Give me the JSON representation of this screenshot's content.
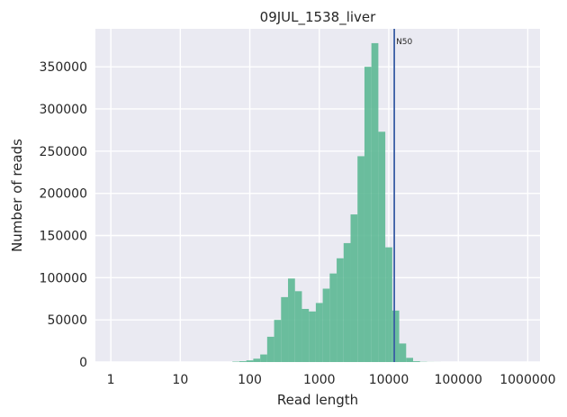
{
  "chart_data": {
    "type": "bar",
    "title": "09JUL_1538_liver",
    "xlabel": "Read length",
    "ylabel": "Number of reads",
    "x_scale": "log10",
    "xlim": [
      0.6,
      1500000
    ],
    "ylim": [
      0,
      395000
    ],
    "x_ticks": [
      {
        "value": 1,
        "label": "1"
      },
      {
        "value": 10,
        "label": "10"
      },
      {
        "value": 100,
        "label": "100"
      },
      {
        "value": 1000,
        "label": "1000"
      },
      {
        "value": 10000,
        "label": "10000"
      },
      {
        "value": 100000,
        "label": "100000"
      },
      {
        "value": 1000000,
        "label": "1000000"
      }
    ],
    "y_ticks": [
      {
        "value": 0,
        "label": "0"
      },
      {
        "value": 50000,
        "label": "50000"
      },
      {
        "value": 100000,
        "label": "100000"
      },
      {
        "value": 150000,
        "label": "150000"
      },
      {
        "value": 200000,
        "label": "200000"
      },
      {
        "value": 250000,
        "label": "250000"
      },
      {
        "value": 300000,
        "label": "300000"
      },
      {
        "value": 350000,
        "label": "350000"
      }
    ],
    "grid": true,
    "bin_edges": [
      56.2,
      70.8,
      89.1,
      112.2,
      141.3,
      177.8,
      223.9,
      281.8,
      354.8,
      446.7,
      562.3,
      707.9,
      891.3,
      1122.0,
      1412.5,
      1778.3,
      2238.7,
      2818.4,
      3548.1,
      4466.8,
      5623.4,
      7079.5,
      8912.5,
      11220.2,
      14125.4,
      17782.8,
      22387.2,
      28183.8,
      35481.3,
      44668.4,
      56234.1
    ],
    "values": [
      500,
      1000,
      2000,
      4000,
      9000,
      30000,
      50000,
      77000,
      99000,
      84000,
      63000,
      60000,
      70000,
      87000,
      105000,
      123000,
      141000,
      175000,
      244000,
      350000,
      378000,
      273000,
      136000,
      61000,
      22000,
      5000,
      1000,
      300,
      100,
      50
    ],
    "bar_color": "#5cb893",
    "annotations": [
      {
        "label": "N50",
        "x": 12000,
        "line_color": "#3b5fa5"
      }
    ]
  },
  "colors": {
    "plot_background": "#eaeaf2",
    "grid": "#ffffff",
    "bar": "#5cb893",
    "n50_line": "#3b5fa5"
  }
}
